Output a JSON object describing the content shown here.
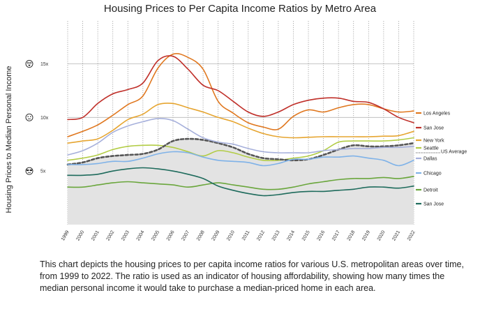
{
  "chart_data": {
    "type": "line",
    "title": "Housing Prices to Per Capita Income Ratios by Metro Area",
    "ylabel": "Housing Prices to Median Personal Income",
    "xlabel": "",
    "ylim": [
      0,
      19
    ],
    "yticks": [
      {
        "value": 5,
        "label": "5x",
        "emoji": "cool-face-icon"
      },
      {
        "value": 10,
        "label": "10x",
        "emoji": "neutral-face-icon"
      },
      {
        "value": 15,
        "label": "15x",
        "emoji": "dizzy-face-icon"
      }
    ],
    "x": [
      "1999",
      "2000",
      "2001",
      "2002",
      "2003",
      "2004",
      "2005",
      "2006",
      "2007",
      "2008",
      "2009",
      "2010",
      "2011",
      "2012",
      "2013",
      "2014",
      "2015",
      "2016",
      "2017",
      "2018",
      "2019",
      "2020",
      "2021",
      "2022"
    ],
    "grid": "vertical dotted lines per year, horizontal lines at 5x, 10x, 15x",
    "legend": "right",
    "series": [
      {
        "name": "Los Angeles",
        "color": "#e07820",
        "style": "solid",
        "values": [
          8.2,
          8.7,
          9.3,
          10.2,
          11.2,
          12.0,
          14.6,
          15.9,
          15.6,
          14.5,
          11.5,
          10.4,
          9.5,
          9.1,
          8.9,
          10.1,
          10.7,
          10.5,
          10.9,
          11.2,
          11.2,
          10.8,
          10.5,
          10.6
        ]
      },
      {
        "name": "San Jose",
        "color": "#c0302a",
        "style": "solid",
        "values": [
          9.8,
          10.0,
          11.3,
          12.2,
          12.6,
          13.2,
          15.3,
          15.7,
          14.5,
          13.0,
          12.5,
          11.5,
          10.5,
          10.1,
          10.5,
          11.2,
          11.6,
          11.8,
          11.8,
          11.5,
          11.4,
          10.8,
          10.0,
          9.5
        ]
      },
      {
        "name": "New York",
        "color": "#e6a530",
        "style": "solid",
        "values": [
          7.6,
          7.8,
          8.0,
          8.8,
          9.8,
          10.3,
          11.2,
          11.3,
          10.9,
          10.5,
          10.0,
          9.6,
          9.0,
          8.5,
          8.2,
          8.1,
          8.15,
          8.2,
          8.2,
          8.2,
          8.2,
          8.25,
          8.3,
          8.7
        ]
      },
      {
        "name": "Seattle",
        "color": "#b2cc45",
        "style": "solid",
        "values": [
          6.0,
          6.2,
          6.5,
          7.0,
          7.3,
          7.4,
          7.4,
          7.2,
          6.8,
          6.4,
          6.9,
          6.7,
          6.3,
          6.0,
          6.0,
          6.2,
          6.4,
          6.9,
          7.7,
          7.8,
          7.8,
          7.8,
          7.9,
          8.1
        ]
      },
      {
        "name": "US Average",
        "color": "#555555",
        "style": "dashed",
        "values": [
          5.6,
          5.8,
          6.2,
          6.4,
          6.5,
          6.6,
          7.0,
          7.8,
          8.0,
          7.9,
          7.6,
          7.2,
          6.6,
          6.2,
          6.1,
          6.0,
          6.1,
          6.5,
          7.0,
          7.4,
          7.3,
          7.3,
          7.4,
          7.6
        ]
      },
      {
        "name": "Dallas",
        "color": "#a6b0db",
        "style": "solid",
        "values": [
          6.5,
          6.9,
          7.6,
          8.6,
          9.2,
          9.6,
          9.9,
          9.7,
          8.9,
          8.1,
          7.7,
          7.5,
          7.1,
          6.8,
          6.7,
          6.7,
          6.7,
          6.9,
          7.0,
          7.1,
          7.1,
          7.2,
          7.2,
          7.3
        ]
      },
      {
        "name": "Chicago",
        "color": "#7fb2e8",
        "style": "solid",
        "values": [
          5.6,
          5.6,
          5.7,
          5.9,
          5.9,
          6.2,
          6.6,
          6.8,
          6.7,
          6.3,
          6.0,
          5.9,
          5.8,
          5.5,
          5.7,
          6.1,
          6.1,
          6.3,
          6.3,
          6.4,
          6.2,
          6.0,
          5.5,
          6.0
        ]
      },
      {
        "name": "Detroit",
        "color": "#6aa63c",
        "style": "solid",
        "values": [
          3.5,
          3.5,
          3.7,
          3.9,
          4.0,
          3.9,
          3.8,
          3.7,
          3.5,
          3.7,
          3.9,
          3.7,
          3.5,
          3.3,
          3.3,
          3.5,
          3.8,
          4.0,
          4.2,
          4.3,
          4.3,
          4.4,
          4.3,
          4.5
        ]
      },
      {
        "name": "San Jose",
        "color": "#1e6b5c",
        "style": "solid",
        "values": [
          4.6,
          4.6,
          4.7,
          5.0,
          5.2,
          5.3,
          5.2,
          5.0,
          4.7,
          4.3,
          3.6,
          3.2,
          2.9,
          2.7,
          2.8,
          3.0,
          3.1,
          3.1,
          3.2,
          3.3,
          3.5,
          3.5,
          3.4,
          3.6
        ]
      }
    ],
    "shaded_area": "area under US Average line shaded light gray"
  },
  "caption": "This chart depicts the housing prices to per capita income ratios for various U.S. metropolitan areas over time, from 1999 to 2022. The ratio is used as an indicator of housing affordability, showing how many times the median personal income it would take to purchase a median-priced home in each area."
}
